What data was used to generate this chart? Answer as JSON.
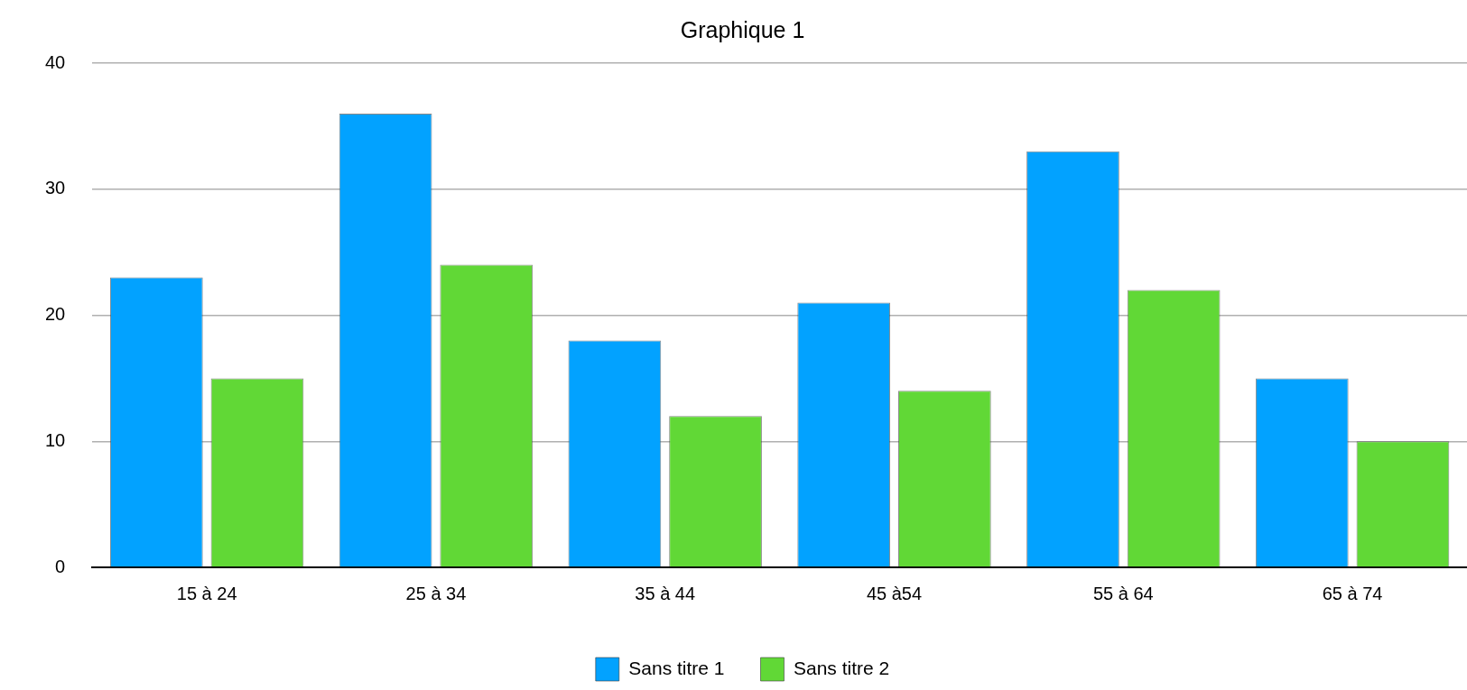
{
  "chart_data": {
    "type": "bar",
    "title": "Graphique 1",
    "categories": [
      "15 à 24",
      "25 à 34",
      "35 à 44",
      "45 à54",
      "55 à 64",
      "65 à 74"
    ],
    "series": [
      {
        "name": "Sans titre 1",
        "color": "#02a2ff",
        "values": [
          23,
          36,
          18,
          21,
          33,
          15
        ]
      },
      {
        "name": "Sans titre 2",
        "color": "#61d836",
        "values": [
          15,
          24,
          12,
          14,
          22,
          10
        ]
      }
    ],
    "ylim": [
      0,
      40
    ],
    "yticks": [
      0,
      10,
      20,
      30,
      40
    ],
    "grid": "y",
    "legend": "bottom"
  }
}
